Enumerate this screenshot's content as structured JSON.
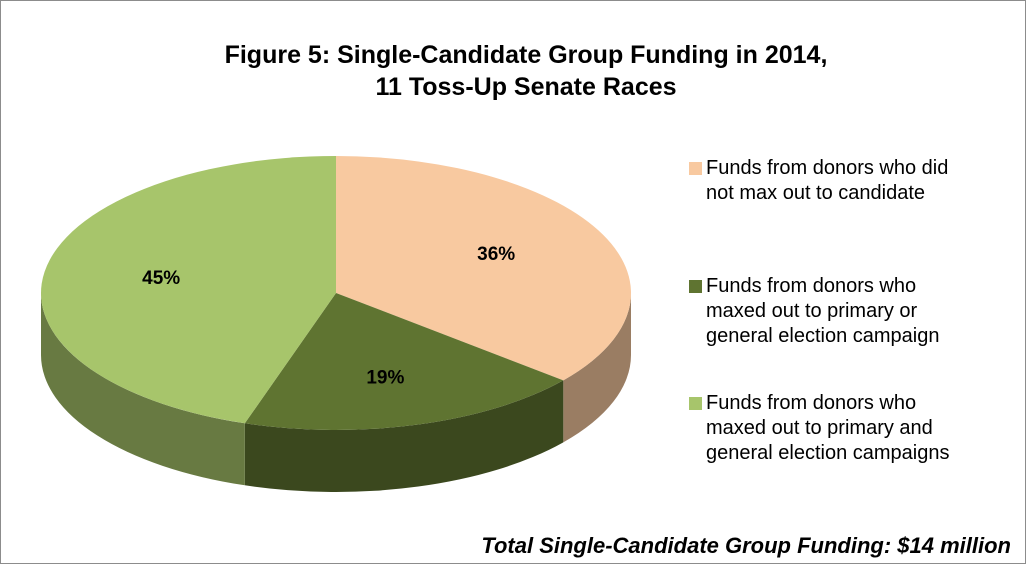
{
  "chart_data": {
    "type": "pie",
    "title": [
      "Figure 5: Single-Candidate Group Funding in 2014,",
      "11 Toss-Up Senate Races"
    ],
    "categories": [
      "Funds from donors who did not max out to candidate",
      "Funds from donors who maxed out to primary or general election campaign",
      "Funds from donors who maxed out to primary and general election campaigns"
    ],
    "values": [
      36,
      19,
      45
    ],
    "value_labels": [
      "36%",
      "19%",
      "45%"
    ],
    "colors": [
      "#f8c9a0",
      "#5f7431",
      "#a7c56b"
    ],
    "annotation": "Total Single-Candidate Group Funding: $14 million",
    "legend": "right"
  }
}
